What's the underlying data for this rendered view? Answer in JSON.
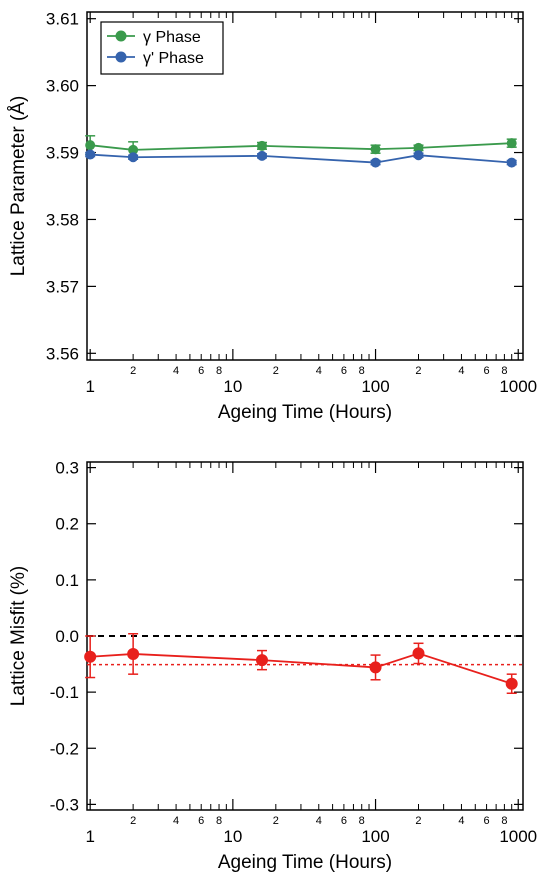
{
  "chart_data": [
    {
      "type": "line",
      "xlabel": "Ageing Time (Hours)",
      "ylabel": "Lattice Parameter (Å)",
      "xscale": "log",
      "xlim": [
        0.95,
        1080
      ],
      "ylim": [
        3.559,
        3.611
      ],
      "x_major_ticks": [
        1,
        10,
        100,
        1000
      ],
      "x_major_tick_labels": [
        "1",
        "10",
        "100",
        "1000"
      ],
      "x_minor_tick_labels": [
        {
          "x": 2,
          "label": "2"
        },
        {
          "x": 4,
          "label": "4"
        },
        {
          "x": 6,
          "label": "6"
        },
        {
          "x": 8,
          "label": "8"
        },
        {
          "x": 20,
          "label": "2"
        },
        {
          "x": 40,
          "label": "4"
        },
        {
          "x": 60,
          "label": "6"
        },
        {
          "x": 80,
          "label": "8"
        },
        {
          "x": 200,
          "label": "2"
        },
        {
          "x": 400,
          "label": "4"
        },
        {
          "x": 600,
          "label": "6"
        },
        {
          "x": 800,
          "label": "8"
        }
      ],
      "y_ticks": [
        3.56,
        3.57,
        3.58,
        3.59,
        3.6,
        3.61
      ],
      "y_tick_labels": [
        "3.56",
        "3.57",
        "3.58",
        "3.59",
        "3.60",
        "3.61"
      ],
      "legend_position": "top-left",
      "grid": false,
      "series": [
        {
          "name": "γ Phase",
          "color": "#3a9a4c",
          "x": [
            1,
            2,
            16,
            100,
            200,
            900
          ],
          "y": [
            3.5911,
            3.5904,
            3.591,
            3.5905,
            3.5907,
            3.5914
          ],
          "yerr": [
            0.0014,
            0.0012,
            0.0005,
            0.0006,
            0.0004,
            0.0006
          ]
        },
        {
          "name": "γ' Phase",
          "color": "#3563ad",
          "x": [
            1,
            2,
            16,
            100,
            200,
            900
          ],
          "y": [
            3.5897,
            3.5893,
            3.5895,
            3.5885,
            3.5896,
            3.5885
          ],
          "yerr": [
            0.0003,
            0.0003,
            0.0003,
            0.0003,
            0.0003,
            0.0003
          ]
        }
      ]
    },
    {
      "type": "line",
      "xlabel": "Ageing Time (Hours)",
      "ylabel": "Lattice Misfit (%)",
      "xscale": "log",
      "xlim": [
        0.95,
        1080
      ],
      "ylim": [
        -0.31,
        0.31
      ],
      "x_major_ticks": [
        1,
        10,
        100,
        1000
      ],
      "x_major_tick_labels": [
        "1",
        "10",
        "100",
        "1000"
      ],
      "x_minor_tick_labels": [
        {
          "x": 2,
          "label": "2"
        },
        {
          "x": 4,
          "label": "4"
        },
        {
          "x": 6,
          "label": "6"
        },
        {
          "x": 8,
          "label": "8"
        },
        {
          "x": 20,
          "label": "2"
        },
        {
          "x": 40,
          "label": "4"
        },
        {
          "x": 60,
          "label": "6"
        },
        {
          "x": 80,
          "label": "8"
        },
        {
          "x": 200,
          "label": "2"
        },
        {
          "x": 400,
          "label": "4"
        },
        {
          "x": 600,
          "label": "6"
        },
        {
          "x": 800,
          "label": "8"
        }
      ],
      "y_ticks": [
        -0.3,
        -0.2,
        -0.1,
        0.0,
        0.1,
        0.2,
        0.3
      ],
      "y_tick_labels": [
        "-0.3",
        "-0.2",
        "-0.1",
        "0.0",
        "0.1",
        "0.2",
        "0.3"
      ],
      "grid": false,
      "reference_lines": [
        {
          "y": 0.0,
          "style": "dashed",
          "color": "#000000"
        },
        {
          "y": -0.051,
          "style": "dotted",
          "color": "#e8201c"
        }
      ],
      "series": [
        {
          "color": "#e8201c",
          "x": [
            1,
            2,
            16,
            100,
            200,
            900
          ],
          "y": [
            -0.037,
            -0.032,
            -0.043,
            -0.056,
            -0.031,
            -0.085
          ],
          "yerr": [
            0.037,
            0.036,
            0.017,
            0.022,
            0.018,
            0.017
          ]
        }
      ]
    }
  ]
}
